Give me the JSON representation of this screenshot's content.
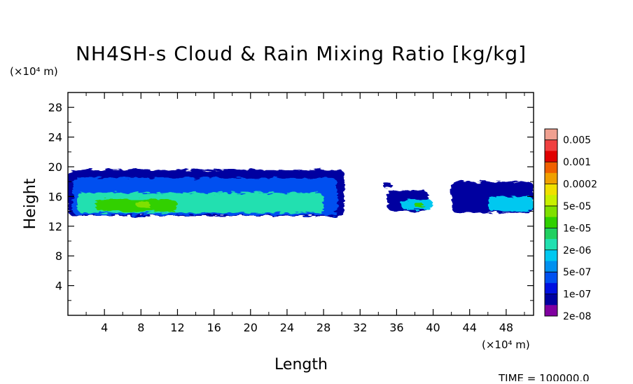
{
  "chart_data": {
    "type": "heatmap",
    "title": "NH4SH-s Cloud & Rain Mixing Ratio [kg/kg]",
    "xlabel": "Length",
    "ylabel": "Height",
    "x_unit": "(×10⁴ m)",
    "y_unit": "(×10⁴ m)",
    "xlim": [
      0,
      51
    ],
    "ylim": [
      0,
      30
    ],
    "x_ticks": [
      "4",
      "8",
      "12",
      "16",
      "20",
      "24",
      "28",
      "32",
      "36",
      "40",
      "44",
      "48"
    ],
    "x_tick_values": [
      4,
      8,
      12,
      16,
      20,
      24,
      28,
      32,
      36,
      40,
      44,
      48
    ],
    "y_ticks": [
      "4",
      "8",
      "12",
      "16",
      "20",
      "24",
      "28"
    ],
    "y_tick_values": [
      4,
      8,
      12,
      16,
      20,
      24,
      28
    ],
    "colorbar": {
      "labels": [
        "0.005",
        "0.001",
        "0.0002",
        "5e-05",
        "1e-05",
        "2e-06",
        "5e-07",
        "1e-07",
        "2e-08"
      ],
      "colors": [
        "#f0a090",
        "#f04040",
        "#e00000",
        "#f06000",
        "#f0a000",
        "#f0e000",
        "#c8f000",
        "#80e000",
        "#30d000",
        "#20d060",
        "#20e0b0",
        "#00c8f0",
        "#0090f0",
        "#0050f0",
        "#0010e0",
        "#0000a0",
        "#8000a0"
      ]
    },
    "cloud_regions": [
      {
        "level": 1,
        "x": [
          0,
          30.3
        ],
        "y": [
          13.4,
          19.6
        ]
      },
      {
        "level": 3,
        "x": [
          0.5,
          29.5
        ],
        "y": [
          13.5,
          18.5
        ]
      },
      {
        "level": 6,
        "x": [
          1,
          28
        ],
        "y": [
          13.8,
          16.5
        ]
      },
      {
        "level": 8,
        "x": [
          3,
          12
        ],
        "y": [
          14.0,
          15.6
        ]
      },
      {
        "level": 9,
        "x": [
          7.5,
          9
        ],
        "y": [
          14.5,
          15.3
        ]
      },
      {
        "level": 1,
        "x": [
          34.5,
          35.5
        ],
        "y": [
          17.2,
          17.8
        ]
      },
      {
        "level": 1,
        "x": [
          35,
          39.5
        ],
        "y": [
          14.0,
          16.8
        ]
      },
      {
        "level": 5,
        "x": [
          36.5,
          40
        ],
        "y": [
          14.2,
          15.6
        ]
      },
      {
        "level": 8,
        "x": [
          38,
          39
        ],
        "y": [
          14.5,
          15.0
        ]
      },
      {
        "level": 1,
        "x": [
          42,
          51
        ],
        "y": [
          13.8,
          18.0
        ]
      },
      {
        "level": 5,
        "x": [
          46,
          51
        ],
        "y": [
          14.0,
          16.0
        ]
      }
    ]
  },
  "footer": {
    "time_text": "TIME =  100000.0"
  }
}
